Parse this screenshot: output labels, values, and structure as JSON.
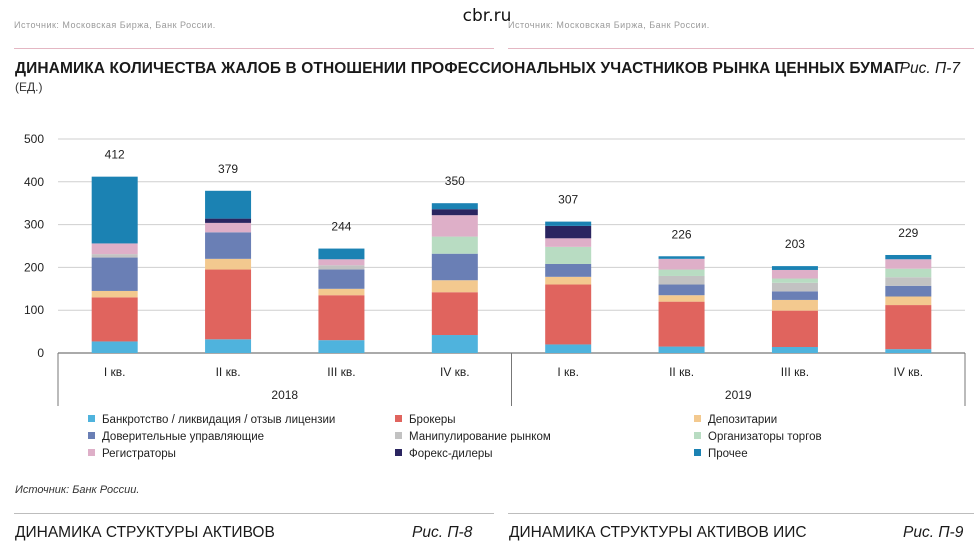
{
  "page": {
    "site": "cbr.ru",
    "clipped_left": "Источник: Московская Биржа, Банк России.",
    "clipped_right": "Источник: Московская Биржа, Банк России.",
    "source": "Источник: Банк России.",
    "next_left_title": "ДИНАМИКА СТРУКТУРЫ АКТИВОВ",
    "next_left_fig": "Рис. П-8",
    "next_right_title": "ДИНАМИКА СТРУКТУРЫ АКТИВОВ ИИС",
    "next_right_fig": "Рис. П-9"
  },
  "chart_data": {
    "type": "bar",
    "stacked": true,
    "title": "ДИНАМИКА КОЛИЧЕСТВА ЖАЛОБ В ОТНОШЕНИИ ПРОФЕССИОНАЛЬНЫХ УЧАСТНИКОВ РЫНКА ЦЕННЫХ БУМАГ",
    "unit": "(ЕД.)",
    "figure_label": "Рис. П-7",
    "ylim": [
      0,
      500
    ],
    "yticks": [
      0,
      100,
      200,
      300,
      400,
      500
    ],
    "grid": true,
    "legend_position": "bottom",
    "categories": [
      "I кв.",
      "II кв.",
      "III кв.",
      "IV кв.",
      "I кв.",
      "II кв.",
      "III кв.",
      "IV кв."
    ],
    "groups": [
      {
        "label": "2018",
        "span": [
          0,
          3
        ]
      },
      {
        "label": "2019",
        "span": [
          4,
          7
        ]
      }
    ],
    "totals": [
      412,
      379,
      244,
      350,
      307,
      226,
      203,
      229
    ],
    "series": [
      {
        "name": "Банкротство / ликвидация / отзыв лицензии",
        "color": "#4fb3dd",
        "values": [
          27,
          32,
          30,
          42,
          20,
          15,
          14,
          9
        ]
      },
      {
        "name": "Брокеры",
        "color": "#e0645e",
        "values": [
          103,
          163,
          105,
          100,
          140,
          105,
          85,
          103
        ]
      },
      {
        "name": "Депозитарии",
        "color": "#f3c98f",
        "values": [
          15,
          25,
          15,
          28,
          18,
          15,
          25,
          20
        ]
      },
      {
        "name": "Доверительные управляющие",
        "color": "#6a7fb5",
        "values": [
          78,
          62,
          45,
          62,
          30,
          25,
          20,
          25
        ]
      },
      {
        "name": "Манипулирование рынком",
        "color": "#c2c2c2",
        "values": [
          8,
          0,
          10,
          0,
          0,
          20,
          20,
          20
        ]
      },
      {
        "name": "Организаторы торгов",
        "color": "#b8dcc2",
        "values": [
          0,
          0,
          0,
          40,
          40,
          15,
          10,
          20
        ]
      },
      {
        "name": "Регистраторы",
        "color": "#deafc8",
        "values": [
          25,
          22,
          14,
          50,
          20,
          25,
          20,
          22
        ]
      },
      {
        "name": "Форекс-дилеры",
        "color": "#2a2560",
        "values": [
          0,
          10,
          0,
          14,
          29,
          0,
          0,
          0
        ]
      },
      {
        "name": "Прочее",
        "color": "#1b82b3",
        "values": [
          156,
          65,
          25,
          14,
          10,
          6,
          9,
          10
        ]
      }
    ]
  }
}
